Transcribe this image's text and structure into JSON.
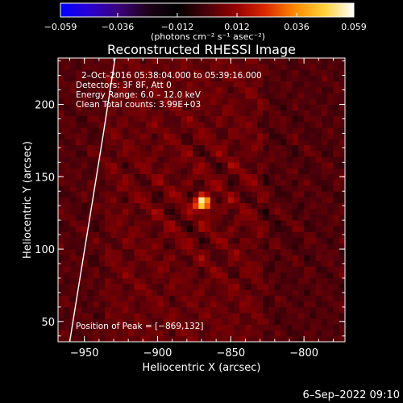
{
  "chart_data": {
    "type": "heatmap",
    "title": "Reconstructed RHESSI Image",
    "xlabel": "Heliocentric X (arcsec)",
    "ylabel": "Heliocentric Y (arcsec)",
    "xlim": [
      -968,
      -772
    ],
    "ylim": [
      36,
      232
    ],
    "x_ticks": [
      {
        "value": -950,
        "label": "−950"
      },
      {
        "value": -900,
        "label": "−900"
      },
      {
        "value": -850,
        "label": "−850"
      },
      {
        "value": -800,
        "label": "−800"
      }
    ],
    "y_ticks": [
      {
        "value": 50,
        "label": "50"
      },
      {
        "value": 100,
        "label": "100"
      },
      {
        "value": 150,
        "label": "150"
      },
      {
        "value": 200,
        "label": "200"
      }
    ],
    "colorbar": {
      "min": -0.059,
      "max": 0.059,
      "label": "(photons cm⁻² s⁻¹ asec⁻²)",
      "ticks": [
        {
          "value": -0.059,
          "label": "−0.059"
        },
        {
          "value": -0.036,
          "label": "−0.036"
        },
        {
          "value": -0.012,
          "label": "−0.012"
        },
        {
          "value": 0.012,
          "label": "0.012"
        },
        {
          "value": 0.036,
          "label": "0.036"
        },
        {
          "value": 0.059,
          "label": "0.059"
        }
      ],
      "colormap": [
        "#0000ff",
        "#2a00d0",
        "#3a0078",
        "#1e0018",
        "#000000",
        "#4a000a",
        "#960000",
        "#dc2a00",
        "#ff8a00",
        "#ffd23a",
        "#ffffff"
      ]
    },
    "peak": {
      "x": -869,
      "y": 132,
      "value": 0.059
    },
    "info_lines": [
      "2–Oct–2016 05:38:04.000 to 05:39:16.000",
      "Detectors: 3F 8F, Att 0",
      "Energy Range: 6.0 – 12.0 keV",
      "Clean    Total counts: 3.99E+03"
    ],
    "peak_text": "Position of Peak = [−869,132]",
    "solar_limb": {
      "points": [
        [
          -960,
          36
        ],
        [
          -953,
          80
        ],
        [
          -945,
          130
        ],
        [
          -937,
          180
        ],
        [
          -929,
          232
        ]
      ],
      "color": "#ffffff"
    }
  },
  "timestamp": "6–Sep–2022 09:10"
}
